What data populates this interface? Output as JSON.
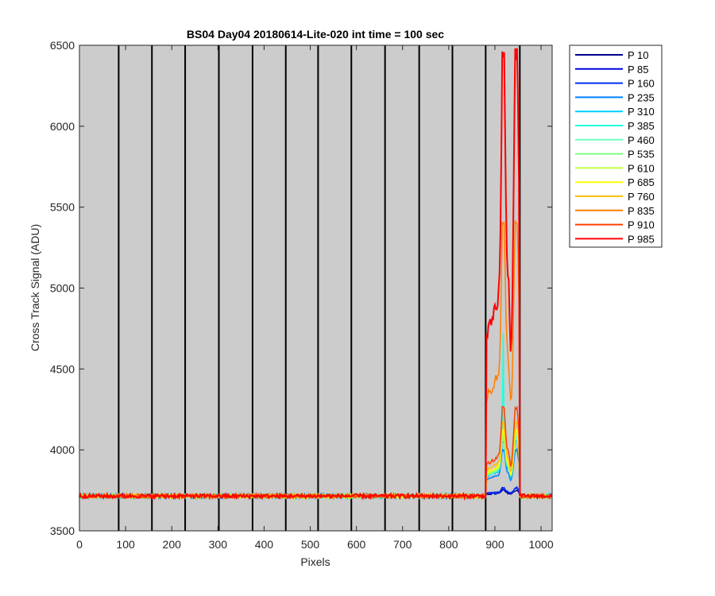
{
  "chart_data": {
    "type": "line",
    "title": "BS04 Day04 20180614-Lite-020 int time = 100 sec",
    "xlabel": "Pixels",
    "ylabel": "Cross Track Signal (ADU)",
    "xlim": [
      0,
      1024
    ],
    "ylim": [
      3500,
      6500
    ],
    "xticks": [
      0,
      100,
      200,
      300,
      400,
      500,
      600,
      700,
      800,
      900,
      1000
    ],
    "yticks": [
      3500,
      4000,
      4500,
      5000,
      5500,
      6000,
      6500
    ],
    "grid": false,
    "background": "#cccccc",
    "legend_position": "outside-top-right",
    "segment_boundaries": [
      85,
      157,
      229,
      302,
      375,
      447,
      517,
      589,
      662,
      736,
      808,
      880,
      954
    ],
    "baseline": 3715,
    "bright_region": [
      880,
      954
    ],
    "series": [
      {
        "name": "P 10",
        "color": "#00008f",
        "peak": 3750
      },
      {
        "name": "P 85",
        "color": "#0000df",
        "peak": 3765
      },
      {
        "name": "P 160",
        "color": "#0030ff",
        "peak": 3765
      },
      {
        "name": "P 235",
        "color": "#0080ff",
        "peak": 4000
      },
      {
        "name": "P 310",
        "color": "#00cfff",
        "peak": 4050
      },
      {
        "name": "P 385",
        "color": "#20ffdf",
        "peak": 4080
      },
      {
        "name": "P 460",
        "color": "#70ffbf",
        "peak": 4070
      },
      {
        "name": "P 535",
        "color": "#80ff80",
        "peak": 4090
      },
      {
        "name": "P 610",
        "color": "#c0ff40",
        "peak": 4100
      },
      {
        "name": "P 685",
        "color": "#ffff00",
        "peak": 4120
      },
      {
        "name": "P 760",
        "color": "#ffbf00",
        "peak": 4170
      },
      {
        "name": "P 835",
        "color": "#ff7f00",
        "peak": 5400
      },
      {
        "name": "P 910",
        "color": "#ff4000",
        "peak": 4260
      },
      {
        "name": "P 985",
        "color": "#ff0000",
        "peak": 6430
      }
    ]
  }
}
